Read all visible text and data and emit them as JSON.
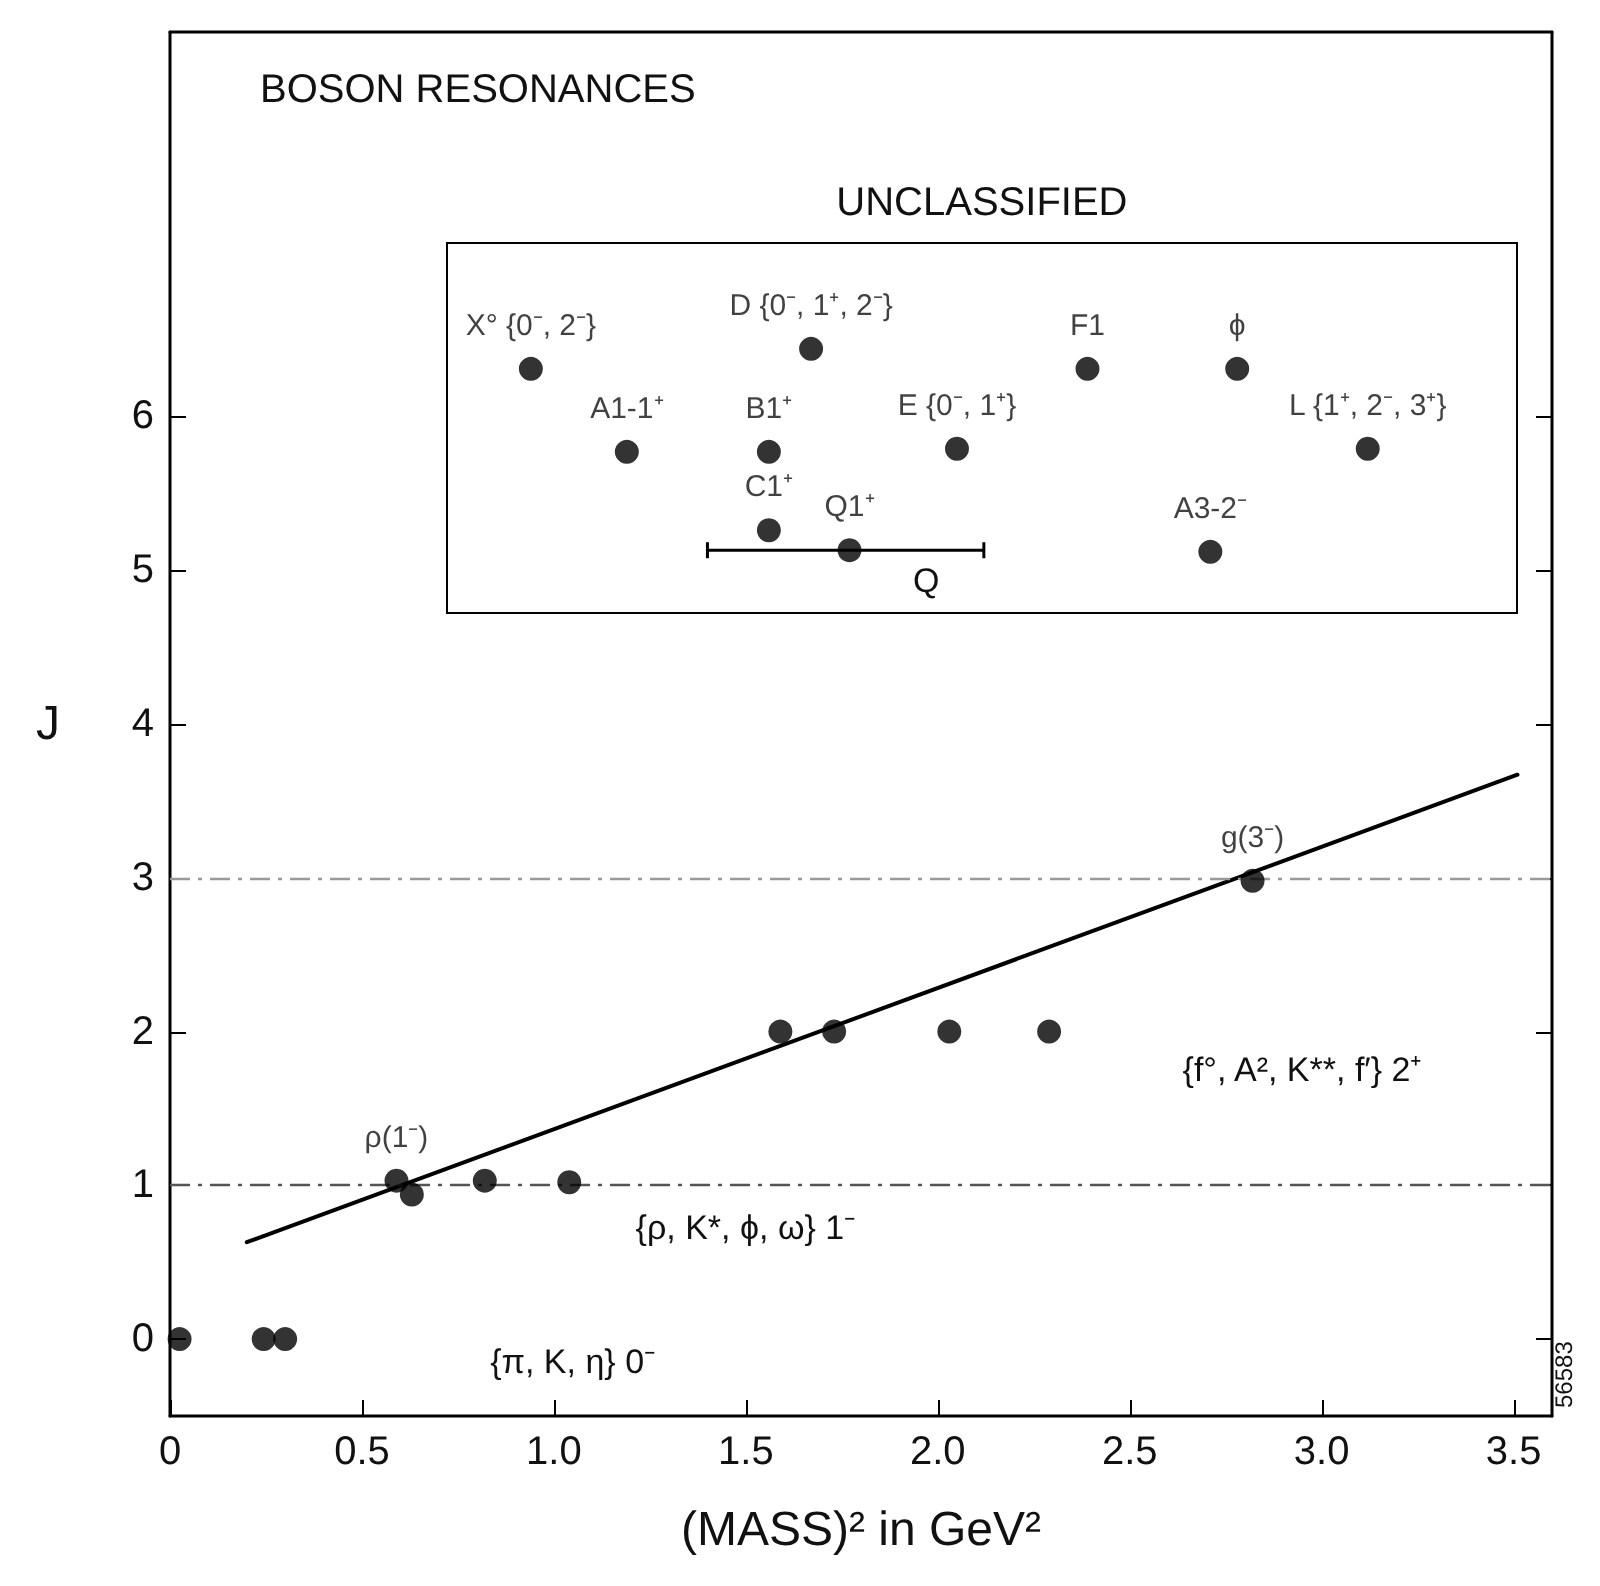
{
  "chart_data": {
    "type": "scatter",
    "title": "BOSON RESONANCES",
    "xlabel": "(MASS)² in GeV²",
    "ylabel": "J",
    "xlim": [
      0,
      3.6
    ],
    "ylim": [
      -0.5,
      8.5
    ],
    "xticks": [
      0,
      0.5,
      {
        "value": 1,
        "label": "1.0"
      },
      1.5,
      {
        "value": 2,
        "label": "2.0"
      },
      2.5,
      {
        "value": 3,
        "label": "3.0"
      },
      3.5
    ],
    "yticks": [
      0,
      1,
      2,
      3,
      4,
      5,
      6
    ],
    "grid": false,
    "marker": "circle",
    "series": [
      {
        "color": "#000000",
        "x": [
          0.025,
          0.244,
          0.3,
          0.59,
          0.63,
          0.82,
          1.04,
          1.59,
          1.73,
          2.03,
          2.29,
          2.82
        ],
        "values": [
          0,
          0,
          0,
          1.03,
          0.94,
          1.03,
          1.02,
          2,
          2,
          2,
          2,
          2.98
        ],
        "value_labels": [
          null,
          null,
          null,
          "ρ(1⁻)",
          null,
          null,
          null,
          null,
          null,
          null,
          null,
          "g(3⁻)"
        ]
      },
      {
        "color": "#000000",
        "x": [
          0.94,
          1.67,
          2.39,
          2.78,
          1.19,
          1.56,
          2.05,
          3.12,
          1.56,
          1.77,
          2.71
        ],
        "values": [
          6.31,
          6.44,
          6.31,
          6.31,
          5.77,
          5.77,
          5.79,
          5.79,
          5.26,
          5.13,
          5.12
        ],
        "value_labels": [
          "X° {0⁻, 2⁻}",
          "D {0⁻, 1⁺, 2⁻}",
          "F1",
          "ϕ",
          "A1-1⁺",
          "B1⁺",
          "E {0⁻, 1⁺}",
          "L {1⁺, 2⁻, 3⁺}",
          "C1⁺",
          "Q1⁺",
          "A3-2⁻"
        ],
        "xerrors": [
          null,
          null,
          null,
          null,
          null,
          null,
          null,
          null,
          null,
          [
            1.4,
            2.12
          ],
          null
        ]
      },
      {
        "type": "line",
        "color": "#000000",
        "marker": "none",
        "line_style": "solid",
        "x": [
          0.2,
          3.51
        ],
        "values": [
          0.63,
          3.67
        ]
      }
    ],
    "ref_lines": [
      {
        "axis": "y",
        "value": 1,
        "color": "#555555",
        "line_style": "dashed"
      },
      {
        "axis": "y",
        "value": 3,
        "color": "#999999",
        "line_style": "dashed"
      }
    ],
    "annotations": [
      "UNCLASSIFIED",
      "56583",
      "Q",
      "{π, K, η} 0⁻",
      "{ρ, K*, ϕ, ω} 1⁻",
      "{f°, A², K**, f′} 2⁺"
    ]
  }
}
